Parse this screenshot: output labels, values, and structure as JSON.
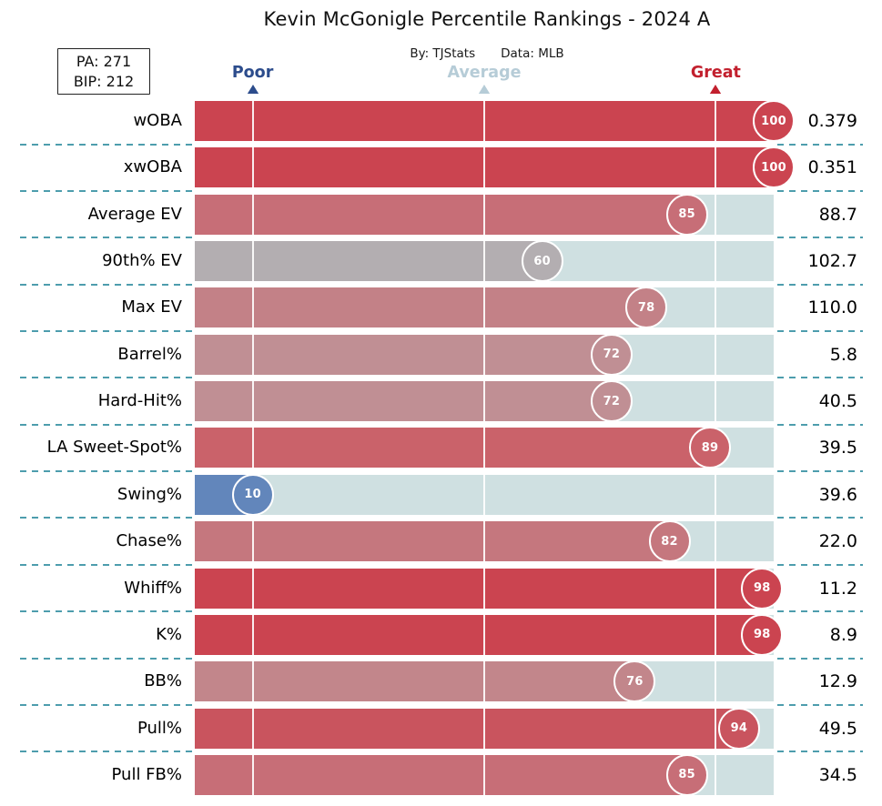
{
  "title": "Kevin McGonigle Percentile Rankings - 2024 A",
  "subtitle": {
    "byline": "By: TJStats",
    "source": "Data: MLB"
  },
  "stats_box": {
    "pa": "PA: 271",
    "bip": "BIP: 212"
  },
  "legend": {
    "poor": {
      "label": "Poor",
      "color": "#2c4c8c",
      "percentile": 10
    },
    "average": {
      "label": "Average",
      "color": "#b6ccd7",
      "percentile": 50
    },
    "great": {
      "label": "Great",
      "color": "#c2202e",
      "percentile": 90
    }
  },
  "chart_data": {
    "type": "bar",
    "orientation": "horizontal",
    "xlabel": "percentile",
    "xlim": [
      0,
      100
    ],
    "gridlines_at": [
      10,
      50,
      90
    ],
    "track_color": "#cfe0e1",
    "divider_color": "#4d9dad",
    "rows": [
      {
        "label": "wOBA",
        "percentile": 100,
        "value": "0.379",
        "color": "#cb4450"
      },
      {
        "label": "xwOBA",
        "percentile": 100,
        "value": "0.351",
        "color": "#cb4450"
      },
      {
        "label": "Average EV",
        "percentile": 85,
        "value": "88.7",
        "color": "#c76e77"
      },
      {
        "label": "90th% EV",
        "percentile": 60,
        "value": "102.7",
        "color": "#b3aeb1"
      },
      {
        "label": "Max EV",
        "percentile": 78,
        "value": "110.0",
        "color": "#c38187"
      },
      {
        "label": "Barrel%",
        "percentile": 72,
        "value": "5.8",
        "color": "#c08f94"
      },
      {
        "label": "Hard-Hit%",
        "percentile": 72,
        "value": "40.5",
        "color": "#c08f94"
      },
      {
        "label": "LA Sweet-Spot%",
        "percentile": 89,
        "value": "39.5",
        "color": "#ca626a"
      },
      {
        "label": "Swing%",
        "percentile": 10,
        "value": "39.6",
        "color": "#6286bb"
      },
      {
        "label": "Chase%",
        "percentile": 82,
        "value": "22.0",
        "color": "#c5777e"
      },
      {
        "label": "Whiff%",
        "percentile": 98,
        "value": "11.2",
        "color": "#cb4450"
      },
      {
        "label": "K%",
        "percentile": 98,
        "value": "8.9",
        "color": "#cb4450"
      },
      {
        "label": "BB%",
        "percentile": 76,
        "value": "12.9",
        "color": "#c2868b"
      },
      {
        "label": "Pull%",
        "percentile": 94,
        "value": "49.5",
        "color": "#c9545e"
      },
      {
        "label": "Pull FB%",
        "percentile": 85,
        "value": "34.5",
        "color": "#c76e77"
      }
    ]
  }
}
